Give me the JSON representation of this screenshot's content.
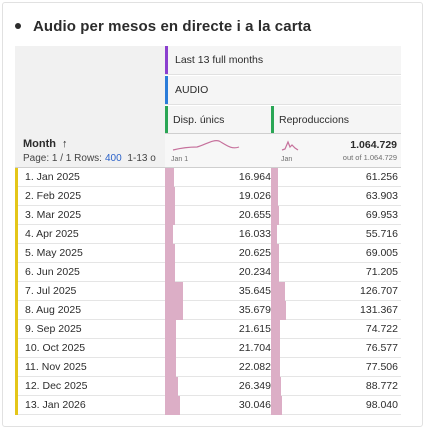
{
  "panel": {
    "title": "Audio per mesos en directe i a la carta"
  },
  "table": {
    "date_range": "Last 13 full months",
    "segment": "AUDIO",
    "metrics": [
      {
        "label": "Disp. únics",
        "color": "#2aa655",
        "spark_label": "Jan 1"
      },
      {
        "label": "Reproduccions",
        "color": "#2aa655",
        "spark_label": "Jan"
      }
    ],
    "header_strip_colors": {
      "date_range": "#8b3fcf",
      "segment": "#2b7cd9"
    },
    "dimension_label": "Month",
    "sort_icon": "arrow-up-icon",
    "page_info": {
      "page_text": "Page: 1 / 1",
      "rows_label": "Rows:",
      "rows_value": "400",
      "range_text": "1-13 o"
    },
    "total": {
      "value": "1.064.729",
      "sub": "out of 1.064.729"
    },
    "bar_color": "#dcaec6",
    "rows": [
      {
        "label": "1.  Jan 2025",
        "v1": "16.964",
        "v2": "61.256",
        "n1": 16964,
        "n2": 61256
      },
      {
        "label": "2.  Feb 2025",
        "v1": "19.026",
        "v2": "63.903",
        "n1": 19026,
        "n2": 63903
      },
      {
        "label": "3.  Mar 2025",
        "v1": "20.655",
        "v2": "69.953",
        "n1": 20655,
        "n2": 69953
      },
      {
        "label": "4.  Apr 2025",
        "v1": "16.033",
        "v2": "55.716",
        "n1": 16033,
        "n2": 55716
      },
      {
        "label": "5.  May 2025",
        "v1": "20.625",
        "v2": "69.005",
        "n1": 20625,
        "n2": 69005
      },
      {
        "label": "6.  Jun 2025",
        "v1": "20.234",
        "v2": "71.205",
        "n1": 20234,
        "n2": 71205
      },
      {
        "label": "7.  Jul 2025",
        "v1": "35.645",
        "v2": "126.707",
        "n1": 35645,
        "n2": 126707
      },
      {
        "label": "8.  Aug 2025",
        "v1": "35.679",
        "v2": "131.367",
        "n1": 35679,
        "n2": 131367
      },
      {
        "label": "9.  Sep 2025",
        "v1": "21.615",
        "v2": "74.722",
        "n1": 21615,
        "n2": 74722
      },
      {
        "label": "10.  Oct 2025",
        "v1": "21.704",
        "v2": "76.577",
        "n1": 21704,
        "n2": 76577
      },
      {
        "label": "11.  Nov 2025",
        "v1": "22.082",
        "v2": "77.506",
        "n1": 22082,
        "n2": 77506
      },
      {
        "label": "12.  Dec 2025",
        "v1": "26.349",
        "v2": "88.772",
        "n1": 26349,
        "n2": 88772
      },
      {
        "label": "13.  Jan 2026",
        "v1": "30.046",
        "v2": "98.040",
        "n1": 30046,
        "n2": 98040
      }
    ]
  }
}
